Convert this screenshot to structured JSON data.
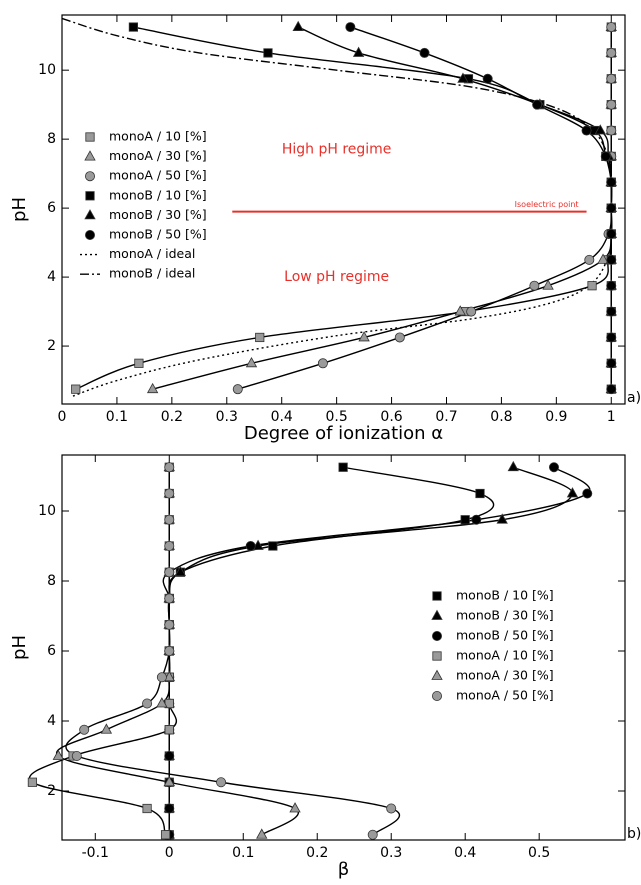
{
  "chart_data": [
    {
      "type": "line",
      "panel_label": "a)",
      "x_label": "Degree of ionization α",
      "y_label": "pH",
      "xlim": [
        0,
        1.025
      ],
      "ylim": [
        0.32,
        11.6
      ],
      "xticks": [
        0,
        0.1,
        0.2,
        0.3,
        0.4,
        0.5,
        0.6,
        0.7,
        0.8,
        0.9,
        1
      ],
      "yticks": [
        2,
        4,
        6,
        8,
        10
      ],
      "legend": "upper left",
      "series": [
        {
          "name": "monoA / 10 [%]",
          "color": "#9a9a9a",
          "marker": "square",
          "linestyle": "solid",
          "x": [
            0.025,
            0.14,
            0.36,
            0.735,
            0.965,
            0.995,
            1,
            1,
            1,
            1,
            1,
            1,
            1,
            1,
            1
          ],
          "values": [
            0.75,
            1.5,
            2.25,
            3,
            3.75,
            4.5,
            5.25,
            6,
            6.75,
            7.5,
            8.25,
            9,
            9.75,
            10.5,
            11.25
          ]
        },
        {
          "name": "monoA / 30 [%]",
          "color": "#9a9a9a",
          "marker": "triangle",
          "linestyle": "solid",
          "x": [
            0.165,
            0.345,
            0.55,
            0.725,
            0.885,
            0.985,
            1,
            1,
            1,
            1,
            1,
            1,
            1,
            1,
            1
          ],
          "values": [
            0.75,
            1.5,
            2.25,
            3,
            3.75,
            4.5,
            5.25,
            6,
            6.75,
            7.5,
            8.25,
            9,
            9.75,
            10.5,
            11.25
          ]
        },
        {
          "name": "monoA / 50 [%]",
          "color": "#9a9a9a",
          "marker": "circle",
          "linestyle": "solid",
          "x": [
            0.32,
            0.475,
            0.615,
            0.745,
            0.86,
            0.96,
            0.995,
            1,
            1,
            1,
            1,
            1,
            1,
            1,
            1
          ],
          "values": [
            0.75,
            1.5,
            2.25,
            3,
            3.75,
            4.5,
            5.25,
            6,
            6.75,
            7.5,
            8.25,
            9,
            9.75,
            10.5,
            11.25
          ]
        },
        {
          "name": "monoB / 10 [%]",
          "color": "#000000",
          "marker": "square",
          "linestyle": "solid",
          "x": [
            1,
            1,
            1,
            1,
            1,
            1,
            1,
            1,
            1,
            0.99,
            0.97,
            0.87,
            0.74,
            0.375,
            0.13
          ],
          "values": [
            0.75,
            1.5,
            2.25,
            3,
            3.75,
            4.5,
            5.25,
            6,
            6.75,
            7.5,
            8.25,
            9,
            9.75,
            10.5,
            11.25
          ]
        },
        {
          "name": "monoB / 30 [%]",
          "color": "#000000",
          "marker": "triangle",
          "linestyle": "solid",
          "x": [
            1,
            1,
            1,
            1,
            1,
            1,
            1,
            1,
            1,
            0.995,
            0.98,
            0.87,
            0.73,
            0.54,
            0.43
          ],
          "values": [
            0.75,
            1.5,
            2.25,
            3,
            3.75,
            4.5,
            5.25,
            6,
            6.75,
            7.5,
            8.25,
            9,
            9.75,
            10.5,
            11.25
          ]
        },
        {
          "name": "monoB / 50 [%]",
          "color": "#000000",
          "marker": "circle",
          "linestyle": "solid",
          "x": [
            1,
            1,
            1,
            1,
            1,
            1,
            1,
            1,
            1,
            0.99,
            0.955,
            0.865,
            0.775,
            0.66,
            0.525
          ],
          "values": [
            0.75,
            1.5,
            2.25,
            3,
            3.75,
            4.5,
            5.25,
            6,
            6.75,
            7.5,
            8.25,
            9,
            9.75,
            10.5,
            11.25
          ]
        },
        {
          "name": "monoA / ideal",
          "color": "#000000",
          "marker": "none",
          "linestyle": "dotted",
          "x": [
            0.02,
            0.1,
            0.25,
            0.5,
            0.75,
            0.9,
            0.97,
            1
          ],
          "values": [
            0.55,
            1,
            1.6,
            2.3,
            2.8,
            3.3,
            3.9,
            4.8
          ]
        },
        {
          "name": "monoB / ideal",
          "color": "#000000",
          "marker": "none",
          "linestyle": "dashdot",
          "x": [
            0,
            0.1,
            0.25,
            0.5,
            0.75,
            0.9,
            0.97,
            1
          ],
          "values": [
            11.5,
            11,
            10.5,
            10,
            9.5,
            8.9,
            8.2,
            7.3
          ]
        }
      ],
      "annotations": [
        {
          "text": "High pH regime",
          "x": 0.5,
          "y": 7.7,
          "color": "#e8302a"
        },
        {
          "text": "Low pH regime",
          "x": 0.5,
          "y": 4,
          "color": "#e8302a"
        }
      ],
      "hline": {
        "y": 5.9,
        "xmin": 0.31,
        "xmax": 0.955,
        "color": "#e8302a",
        "label": "Isoelectric point"
      }
    },
    {
      "type": "line",
      "panel_label": "b)",
      "x_label": "β",
      "y_label": "pH",
      "xlim": [
        -0.145,
        0.616
      ],
      "ylim": [
        0.6,
        11.6
      ],
      "xticks": [
        -0.1,
        0,
        0.1,
        0.2,
        0.3,
        0.4,
        0.5
      ],
      "yticks": [
        2,
        4,
        6,
        8,
        10
      ],
      "legend": "center right",
      "series": [
        {
          "name": "monoB / 10 [%]",
          "color": "#000000",
          "marker": "square",
          "linestyle": "solid",
          "x": [
            0,
            0,
            0,
            0,
            0,
            0,
            0,
            0,
            0,
            0,
            0.015,
            0.14,
            0.4,
            0.42,
            0.235
          ],
          "values": [
            0.75,
            1.5,
            2.25,
            3,
            3.75,
            4.5,
            5.25,
            6,
            6.75,
            7.5,
            8.25,
            9,
            9.75,
            10.5,
            11.25
          ]
        },
        {
          "name": "monoB / 30 [%]",
          "color": "#000000",
          "marker": "triangle",
          "linestyle": "solid",
          "x": [
            0,
            0,
            0,
            0,
            0,
            0,
            0,
            0,
            0,
            0,
            0.015,
            0.12,
            0.45,
            0.545,
            0.465
          ],
          "values": [
            0.75,
            1.5,
            2.25,
            3,
            3.75,
            4.5,
            5.25,
            6,
            6.75,
            7.5,
            8.25,
            9,
            9.75,
            10.5,
            11.25
          ]
        },
        {
          "name": "monoB / 50 [%]",
          "color": "#000000",
          "marker": "circle",
          "linestyle": "solid",
          "x": [
            0,
            0,
            0,
            0,
            0,
            0,
            0,
            0,
            0,
            0,
            0,
            0.11,
            0.415,
            0.565,
            0.52
          ],
          "values": [
            0.75,
            1.5,
            2.25,
            3,
            3.75,
            4.5,
            5.25,
            6,
            6.75,
            7.5,
            8.25,
            9,
            9.75,
            10.5,
            11.25
          ]
        },
        {
          "name": "monoA / 10 [%]",
          "color": "#9a9a9a",
          "marker": "square",
          "linestyle": "solid",
          "x": [
            -0.005,
            -0.03,
            -0.185,
            -0.13,
            0,
            0,
            0,
            0,
            0,
            0,
            0,
            0,
            0,
            0,
            0
          ],
          "values": [
            0.75,
            1.5,
            2.25,
            3,
            3.75,
            4.5,
            5.25,
            6,
            6.75,
            7.5,
            8.25,
            9,
            9.75,
            10.5,
            11.25
          ]
        },
        {
          "name": "monoA / 30 [%]",
          "color": "#9a9a9a",
          "marker": "triangle",
          "linestyle": "solid",
          "x": [
            0.125,
            0.17,
            0,
            -0.15,
            -0.085,
            -0.01,
            0,
            0,
            0,
            0,
            0,
            0,
            0,
            0,
            0
          ],
          "values": [
            0.75,
            1.5,
            2.25,
            3,
            3.75,
            4.5,
            5.25,
            6,
            6.75,
            7.5,
            8.25,
            9,
            9.75,
            10.5,
            11.25
          ]
        },
        {
          "name": "monoA / 50 [%]",
          "color": "#9a9a9a",
          "marker": "circle",
          "linestyle": "solid",
          "x": [
            0.275,
            0.3,
            0.07,
            -0.125,
            -0.115,
            -0.03,
            -0.01,
            0,
            0,
            0,
            0,
            0,
            0,
            0,
            0
          ],
          "values": [
            0.75,
            1.5,
            2.25,
            3,
            3.75,
            4.5,
            5.25,
            6,
            6.75,
            7.5,
            8.25,
            9,
            9.75,
            10.5,
            11.25
          ]
        }
      ]
    }
  ]
}
